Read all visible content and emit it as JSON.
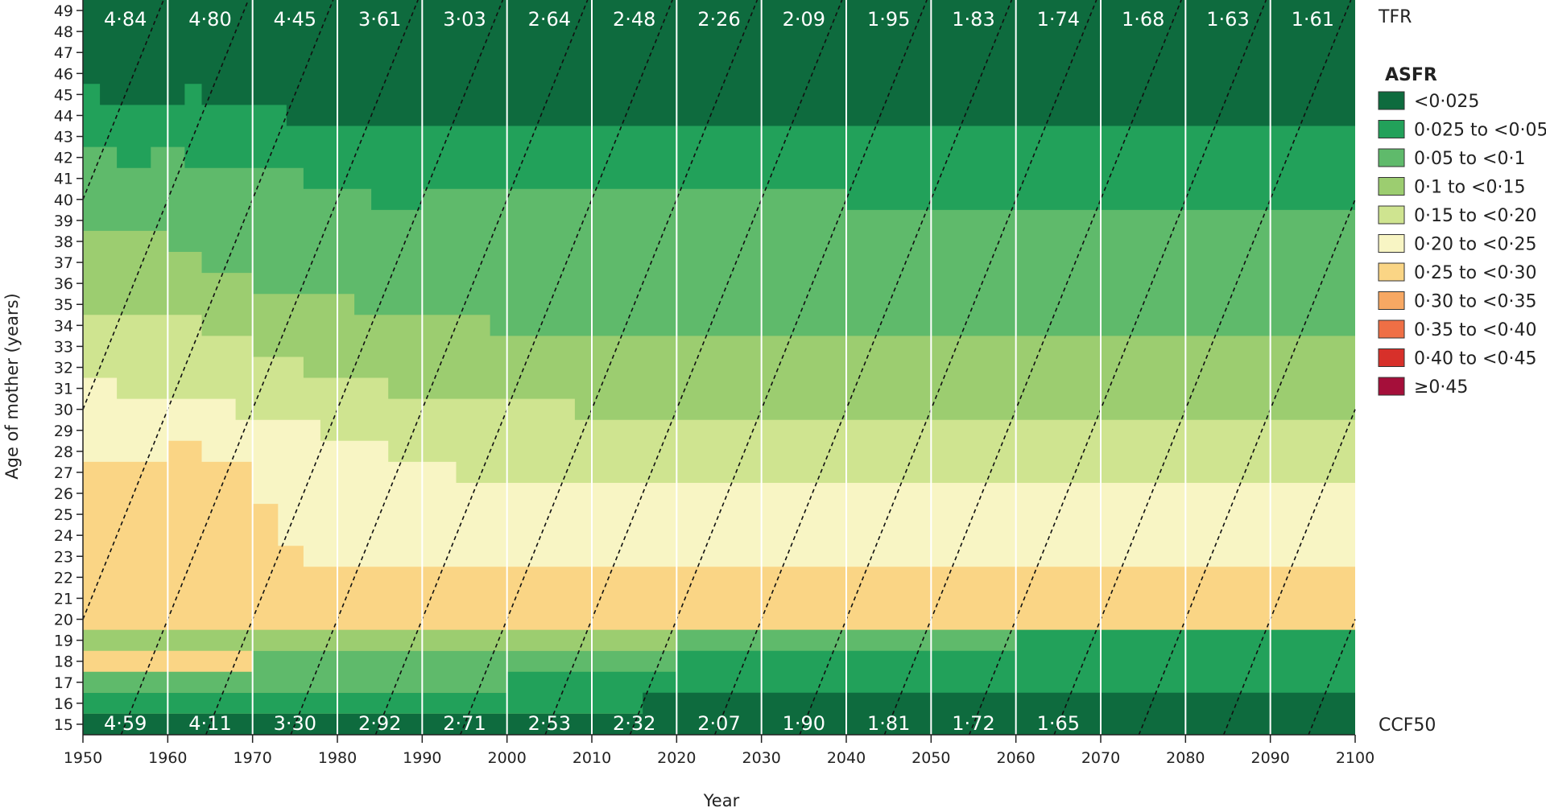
{
  "chart_data": {
    "type": "heatmap",
    "xlabel": "Year",
    "ylabel": "Age of mother (years)",
    "xlim": [
      1950,
      2100
    ],
    "ylim": [
      15,
      49
    ],
    "x_ticks": [
      "1950",
      "1960",
      "1970",
      "1980",
      "1990",
      "2000",
      "2010",
      "2020",
      "2030",
      "2040",
      "2050",
      "2060",
      "2070",
      "2080",
      "2090",
      "2100"
    ],
    "y_ticks": [
      "15",
      "16",
      "17",
      "18",
      "19",
      "20",
      "21",
      "22",
      "23",
      "24",
      "25",
      "26",
      "27",
      "28",
      "29",
      "30",
      "31",
      "32",
      "33",
      "34",
      "35",
      "36",
      "37",
      "38",
      "39",
      "40",
      "41",
      "42",
      "43",
      "44",
      "45",
      "46",
      "47",
      "48",
      "49"
    ],
    "tfr_label": "TFR",
    "ccf_label": "CCF50",
    "tfr": [
      {
        "year": 1950,
        "label": "4·84"
      },
      {
        "year": 1960,
        "label": "4·80"
      },
      {
        "year": 1970,
        "label": "4·45"
      },
      {
        "year": 1980,
        "label": "3·61"
      },
      {
        "year": 1990,
        "label": "3·03"
      },
      {
        "year": 2000,
        "label": "2·64"
      },
      {
        "year": 2010,
        "label": "2·48"
      },
      {
        "year": 2020,
        "label": "2·26"
      },
      {
        "year": 2030,
        "label": "2·09"
      },
      {
        "year": 2040,
        "label": "1·95"
      },
      {
        "year": 2050,
        "label": "1·83"
      },
      {
        "year": 2060,
        "label": "1·74"
      },
      {
        "year": 2070,
        "label": "1·68"
      },
      {
        "year": 2080,
        "label": "1·63"
      },
      {
        "year": 2090,
        "label": "1·61"
      }
    ],
    "ccf50": [
      {
        "year": 1950,
        "label": "4·59"
      },
      {
        "year": 1960,
        "label": "4·11"
      },
      {
        "year": 1970,
        "label": "3·30"
      },
      {
        "year": 1980,
        "label": "2·92"
      },
      {
        "year": 1990,
        "label": "2·71"
      },
      {
        "year": 2000,
        "label": "2·53"
      },
      {
        "year": 2010,
        "label": "2·32"
      },
      {
        "year": 2020,
        "label": "2·07"
      },
      {
        "year": 2030,
        "label": "1·90"
      },
      {
        "year": 2040,
        "label": "1·81"
      },
      {
        "year": 2050,
        "label": "1·72"
      },
      {
        "year": 2060,
        "label": "1·65"
      }
    ],
    "legend": {
      "title": "ASFR",
      "items": [
        {
          "label": "<0·025",
          "color": "#0e6b3e"
        },
        {
          "label": "0·025 to <0·05",
          "color": "#22a15a"
        },
        {
          "label": "0·05 to <0·1",
          "color": "#5fba6b"
        },
        {
          "label": "0·1 to <0·15",
          "color": "#9ccd70"
        },
        {
          "label": "0·15 to <0·20",
          "color": "#cfe490"
        },
        {
          "label": "0·20 to <0·25",
          "color": "#f8f5c4"
        },
        {
          "label": "0·25 to <0·30",
          "color": "#fad585"
        },
        {
          "label": "0·30 to <0·35",
          "color": "#f7a863"
        },
        {
          "label": "0·35 to <0·40",
          "color": "#ef6f45"
        },
        {
          "label": "0·40 to <0·45",
          "color": "#d7302a"
        },
        {
          "label": "≥0·45",
          "color": "#a50f3a"
        }
      ]
    },
    "band_edges": [
      {
        "color_index": 0,
        "upper": [
          [
            1950,
            49.5
          ],
          [
            2100,
            49.5
          ]
        ]
      },
      {
        "color_index": 1,
        "upper": [
          [
            1950,
            45.5
          ],
          [
            1952,
            45.5
          ],
          [
            1952,
            44.5
          ],
          [
            1962,
            44.5
          ],
          [
            1962,
            45.5
          ],
          [
            1964,
            45.5
          ],
          [
            1964,
            44.5
          ],
          [
            1974,
            44.5
          ],
          [
            1974,
            43.5
          ],
          [
            1990,
            43.5
          ],
          [
            1990,
            43.5
          ],
          [
            2100,
            43.5
          ]
        ]
      },
      {
        "color_index": 2,
        "upper": [
          [
            1950,
            42.5
          ],
          [
            1954,
            42.5
          ],
          [
            1954,
            41.5
          ],
          [
            1958,
            41.5
          ],
          [
            1958,
            42.5
          ],
          [
            1962,
            42.5
          ],
          [
            1962,
            41.5
          ],
          [
            1976,
            41.5
          ],
          [
            1976,
            40.5
          ],
          [
            1984,
            40.5
          ],
          [
            1984,
            39.5
          ],
          [
            1990,
            39.5
          ],
          [
            1990,
            40.5
          ],
          [
            2040,
            40.5
          ],
          [
            2040,
            39.5
          ],
          [
            2100,
            39.5
          ]
        ]
      },
      {
        "color_index": 3,
        "upper": [
          [
            1950,
            38.5
          ],
          [
            1960,
            38.5
          ],
          [
            1960,
            37.5
          ],
          [
            1964,
            37.5
          ],
          [
            1964,
            36.5
          ],
          [
            1970,
            36.5
          ],
          [
            1970,
            35.5
          ],
          [
            1982,
            35.5
          ],
          [
            1982,
            34.5
          ],
          [
            1998,
            34.5
          ],
          [
            1998,
            33.5
          ],
          [
            2100,
            33.5
          ]
        ]
      },
      {
        "color_index": 4,
        "upper": [
          [
            1950,
            34.5
          ],
          [
            1964,
            34.5
          ],
          [
            1964,
            33.5
          ],
          [
            1970,
            33.5
          ],
          [
            1970,
            32.5
          ],
          [
            1976,
            32.5
          ],
          [
            1976,
            31.5
          ],
          [
            1986,
            31.5
          ],
          [
            1986,
            30.5
          ],
          [
            2008,
            30.5
          ],
          [
            2008,
            29.5
          ],
          [
            2100,
            29.5
          ]
        ]
      },
      {
        "color_index": 5,
        "upper": [
          [
            1950,
            31.5
          ],
          [
            1954,
            31.5
          ],
          [
            1954,
            30.5
          ],
          [
            1968,
            30.5
          ],
          [
            1968,
            29.5
          ],
          [
            1978,
            29.5
          ],
          [
            1978,
            28.5
          ],
          [
            1986,
            28.5
          ],
          [
            1986,
            27.5
          ],
          [
            1994,
            27.5
          ],
          [
            1994,
            26.5
          ],
          [
            2100,
            26.5
          ]
        ]
      },
      {
        "color_index": 6,
        "upper": [
          [
            1950,
            27.5
          ],
          [
            1960,
            27.5
          ],
          [
            1960,
            28.5
          ],
          [
            1964,
            28.5
          ],
          [
            1964,
            27.5
          ],
          [
            1970,
            27.5
          ],
          [
            1970,
            25.5
          ],
          [
            1973,
            25.5
          ],
          [
            1973,
            23.5
          ],
          [
            1976,
            23.5
          ],
          [
            1976,
            22.5
          ],
          [
            2100,
            22.5
          ]
        ]
      }
    ]
  }
}
